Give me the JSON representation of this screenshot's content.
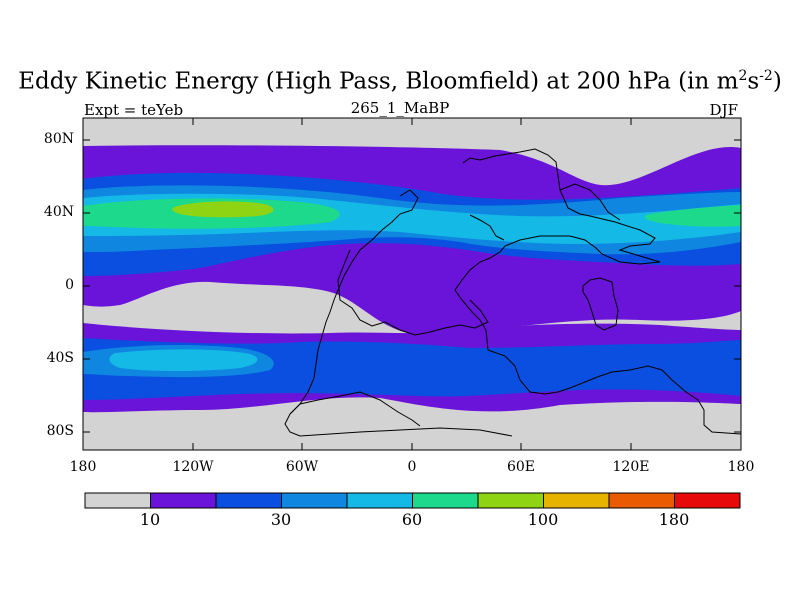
{
  "title": {
    "main_prefix": "Eddy Kinetic Energy (High Pass, Bloomfield) at 200 hPa (in m",
    "sup1": "2",
    "mid": "s",
    "sup2": "-2",
    "suffix": ")"
  },
  "subtitle": "265_1_MaBP",
  "left_label": "Expt = teYeb",
  "right_label": "DJF",
  "chart_data": {
    "type": "filled-contour-map",
    "variable": "Eddy Kinetic Energy (High Pass, Bloomfield) at 200 hPa",
    "units": "m2 s-2",
    "season": "DJF",
    "lon_range": [
      -180,
      180
    ],
    "lat_range": [
      -90,
      90
    ],
    "x_ticks": [
      "180",
      "120W",
      "60W",
      "0",
      "60E",
      "120E",
      "180"
    ],
    "y_ticks": [
      "80N",
      "40N",
      "0",
      "40S",
      "80S"
    ],
    "colorbar": {
      "levels": [
        10,
        20,
        30,
        45,
        60,
        80,
        100,
        130,
        180
      ],
      "labels": [
        "10",
        "30",
        "60",
        "100",
        "180"
      ],
      "colors": [
        "#d3d3d3",
        "#6a14d9",
        "#0a4fe0",
        "#0f86e0",
        "#14b9e6",
        "#1dd98c",
        "#8fd412",
        "#e6b400",
        "#ea5a00",
        "#e60a0a"
      ]
    }
  }
}
